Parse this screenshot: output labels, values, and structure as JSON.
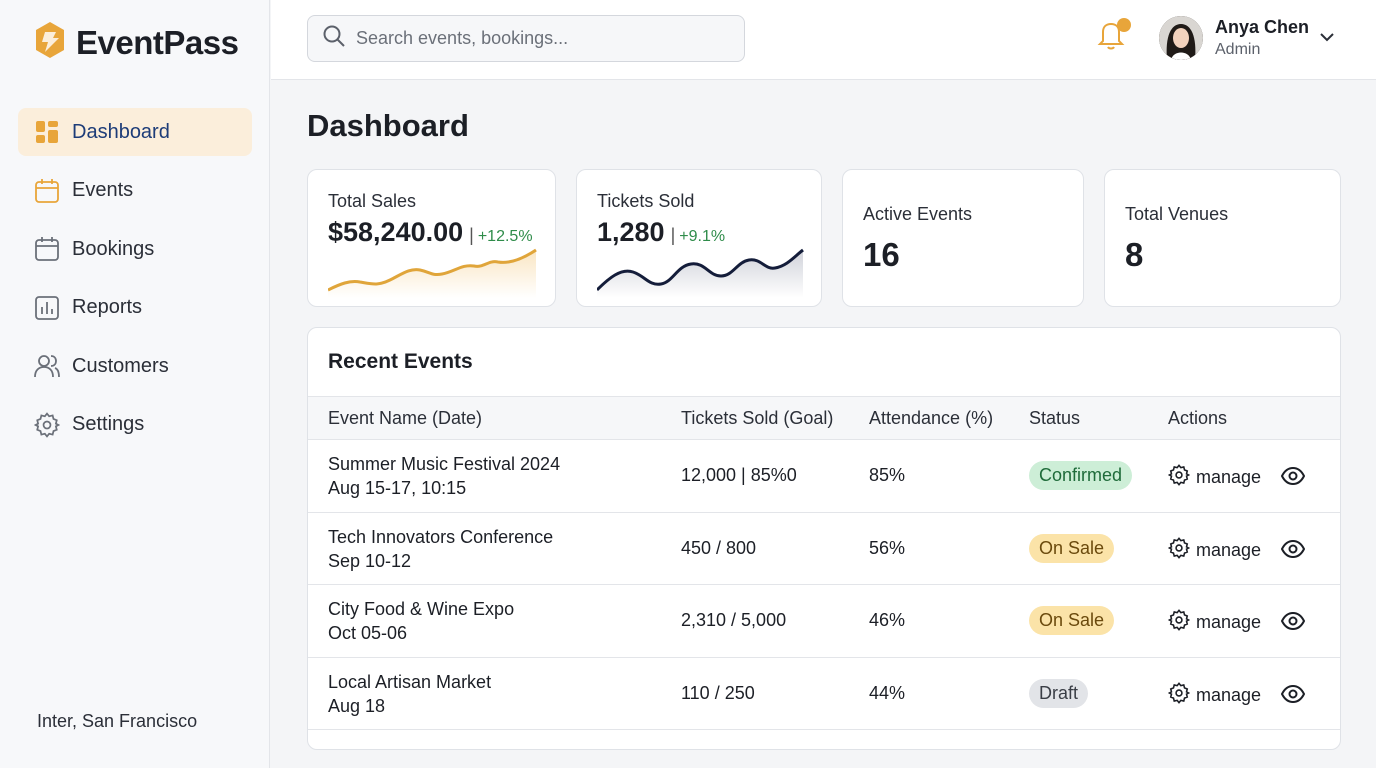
{
  "brand": {
    "name": "EventPass",
    "accent": "#e8a53a"
  },
  "sidebar": {
    "items": [
      {
        "label": "Dashboard",
        "icon": "grid-icon",
        "active": true
      },
      {
        "label": "Events",
        "icon": "calendar-icon"
      },
      {
        "label": "Bookings",
        "icon": "calendar-outline-icon"
      },
      {
        "label": "Reports",
        "icon": "bar-chart-icon"
      },
      {
        "label": "Customers",
        "icon": "users-icon"
      },
      {
        "label": "Settings",
        "icon": "gear-icon"
      }
    ],
    "footer": "Inter, San Francisco"
  },
  "header": {
    "search_placeholder": "Search events, bookings...",
    "notification_icon": "bell-icon",
    "user": {
      "name": "Anya Chen",
      "role": "Admin"
    }
  },
  "main": {
    "title": "Dashboard",
    "stats": [
      {
        "label": "Total Sales",
        "value": "$58,240.00",
        "separator": "|",
        "change": "+12.5%",
        "spark_color": "#e0a53a"
      },
      {
        "label": "Tickets Sold",
        "value": "1,280",
        "separator": "|",
        "change": "+9.1%",
        "spark_color": "#141d3a"
      },
      {
        "label": "Active Events",
        "value": "16"
      },
      {
        "label": "Total Venues",
        "value": "8"
      }
    ],
    "recent": {
      "title": "Recent Events",
      "columns": [
        "Event Name (Date)",
        "Tickets Sold (Goal)",
        "Attendance (%)",
        "Status",
        "Actions"
      ],
      "rows": [
        {
          "name": "Summer Music Festival 2024",
          "date": "Aug 15-17, 10:15",
          "tickets": "12,000 | 85%0",
          "attendance": "85%",
          "status": "Confirmed",
          "status_kind": "confirmed",
          "action": "manage"
        },
        {
          "name": "Tech Innovators Conference",
          "date": "Sep 10-12",
          "tickets": "450 / 800",
          "attendance": "56%",
          "status": "On Sale",
          "status_kind": "onsale",
          "action": "manage"
        },
        {
          "name": "City Food & Wine Expo",
          "date": "Oct 05-06",
          "tickets": "2,310 / 5,000",
          "attendance": "46%",
          "status": "On Sale",
          "status_kind": "onsale",
          "action": "manage"
        },
        {
          "name": "Local Artisan Market",
          "date": "Aug 18",
          "tickets": "110 / 250",
          "attendance": "44%",
          "status": "Draft",
          "status_kind": "draft",
          "action": "manage"
        }
      ]
    }
  }
}
